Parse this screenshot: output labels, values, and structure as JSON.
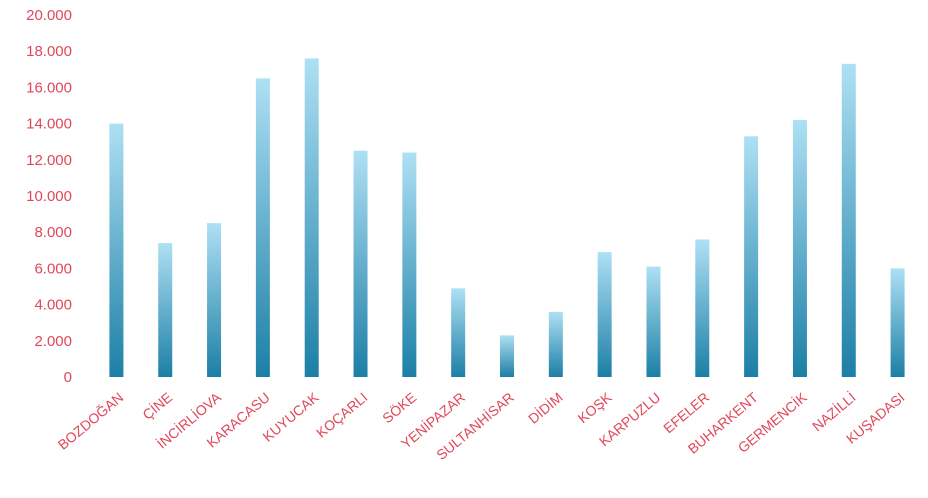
{
  "chart_data": {
    "type": "bar",
    "title": "",
    "xlabel": "",
    "ylabel": "",
    "ylim": [
      0,
      20000
    ],
    "yticks": [
      "0",
      "2.000",
      "4.000",
      "6.000",
      "8.000",
      "10.000",
      "12.000",
      "14.000",
      "16.000",
      "18.000",
      "20.000"
    ],
    "categories": [
      "BOZDOĞAN",
      "ÇİNE",
      "İNCİRLİOVA",
      "KARACASU",
      "KUYUCAK",
      "KOÇARLI",
      "SÖKE",
      "YENİPAZAR",
      "SULTANHİSAR",
      "DİDİM",
      "KOŞK",
      "KARPUZLU",
      "EFELER",
      "BUHARKENT",
      "GERMENCİK",
      "NAZİLLİ",
      "KUŞADASI"
    ],
    "values": [
      14000,
      7400,
      8500,
      16500,
      17600,
      12500,
      12400,
      4900,
      2300,
      3600,
      6900,
      6100,
      7600,
      13300,
      14200,
      17300,
      6000
    ],
    "grid": false,
    "legend": "none",
    "colors": {
      "bar_top": "#aee0f4",
      "bar_bottom": "#1c7fa6",
      "label": "#e0475a"
    }
  }
}
